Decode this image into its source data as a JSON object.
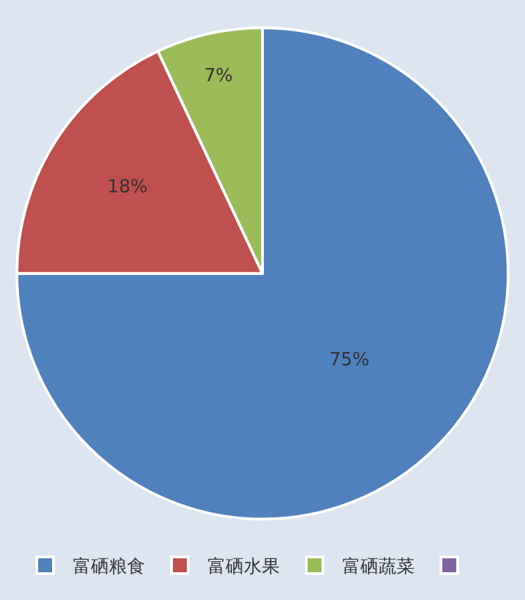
{
  "chart_data": {
    "type": "pie",
    "categories": [
      "富硒粮食",
      "富硒水果",
      "富硒蔬菜",
      null
    ],
    "values": [
      75,
      18,
      7,
      0
    ],
    "colors": [
      "#4f81bd",
      "#c0504d",
      "#9bbb59",
      "#8064a2"
    ],
    "value_labels": [
      "75%",
      "18%",
      "7%",
      null
    ],
    "legend": "bottom"
  }
}
